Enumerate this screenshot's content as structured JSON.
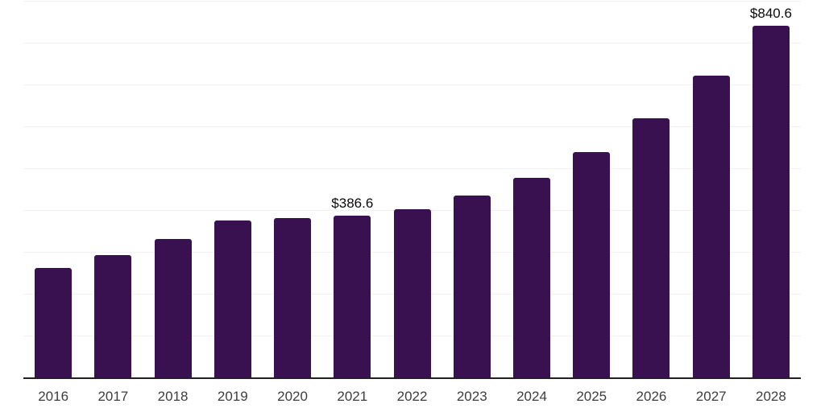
{
  "chart_data": {
    "type": "bar",
    "title": "",
    "categories": [
      "2016",
      "2017",
      "2018",
      "2019",
      "2020",
      "2021",
      "2022",
      "2023",
      "2024",
      "2025",
      "2026",
      "2027",
      "2028"
    ],
    "values": [
      261,
      292,
      331,
      375,
      380,
      386.6,
      402,
      434,
      477,
      539,
      619,
      721,
      840.6
    ],
    "data_labels": [
      "",
      "",
      "",
      "",
      "",
      "$386.6",
      "",
      "",
      "",
      "",
      "",
      "",
      "$840.6"
    ],
    "ylim": [
      0,
      900
    ],
    "gridline_step": 100,
    "grid": "horizontal-only",
    "legend": "none",
    "xlabel": "",
    "ylabel": "",
    "colors": {
      "bar": "#3A1150",
      "axis_line": "#202020",
      "gridline": "#F2F2F2",
      "tick_label": "#3D3D3D",
      "data_label": "#0A0A0A",
      "background": "#FFFFFF"
    }
  }
}
